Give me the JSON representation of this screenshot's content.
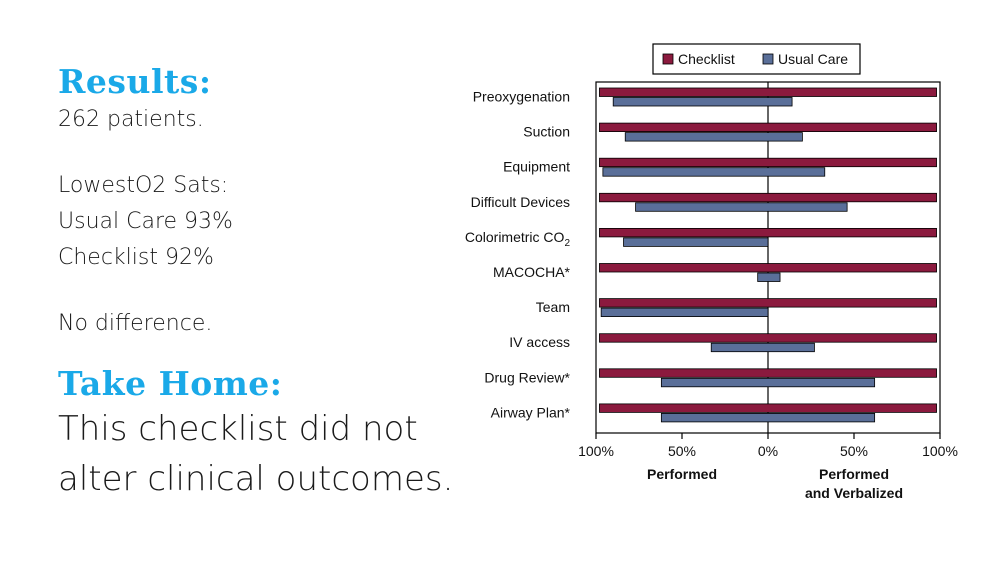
{
  "slide": {
    "results_heading": "Results:",
    "patients": "262 patients.",
    "lowest_sats_label": "LowestO2 Sats:",
    "usual_care_sats": "Usual Care 93%",
    "checklist_sats": "Checklist 92%",
    "no_difference": "No difference.",
    "take_home_heading": "Take Home:",
    "take_home_line1": "This checklist did not",
    "take_home_line2": "alter clinical outcomes.",
    "heading_color": "#1aa9e8"
  },
  "chart_data": {
    "type": "bar",
    "orientation": "horizontal-diverging",
    "categories": [
      "Preoxygenation",
      "Suction",
      "Equipment",
      "Difficult Devices",
      "Colorimetric CO₂",
      "MACOCHA*",
      "Team",
      "IV access",
      "Drug Review*",
      "Airway Plan*"
    ],
    "series": [
      {
        "name": "Checklist",
        "color": "#8b1a3e",
        "performed": [
          98,
          98,
          98,
          98,
          98,
          98,
          98,
          98,
          98,
          98
        ],
        "performed_and_verbalized": [
          98,
          98,
          98,
          98,
          98,
          98,
          98,
          98,
          98,
          98
        ]
      },
      {
        "name": "Usual Care",
        "color": "#5a6f99",
        "performed": [
          90,
          83,
          96,
          77,
          84,
          6,
          97,
          33,
          62,
          62
        ],
        "performed_and_verbalized": [
          14,
          20,
          33,
          46,
          0,
          7,
          0,
          27,
          62,
          62
        ]
      }
    ],
    "x_ticks": [
      "100%",
      "50%",
      "0%",
      "50%",
      "100%"
    ],
    "xlim": [
      -100,
      100
    ],
    "xlabel_left": "Performed",
    "xlabel_right_line1": "Performed",
    "xlabel_right_line2": "and Verbalized",
    "legend_position": "top",
    "grid": false
  }
}
